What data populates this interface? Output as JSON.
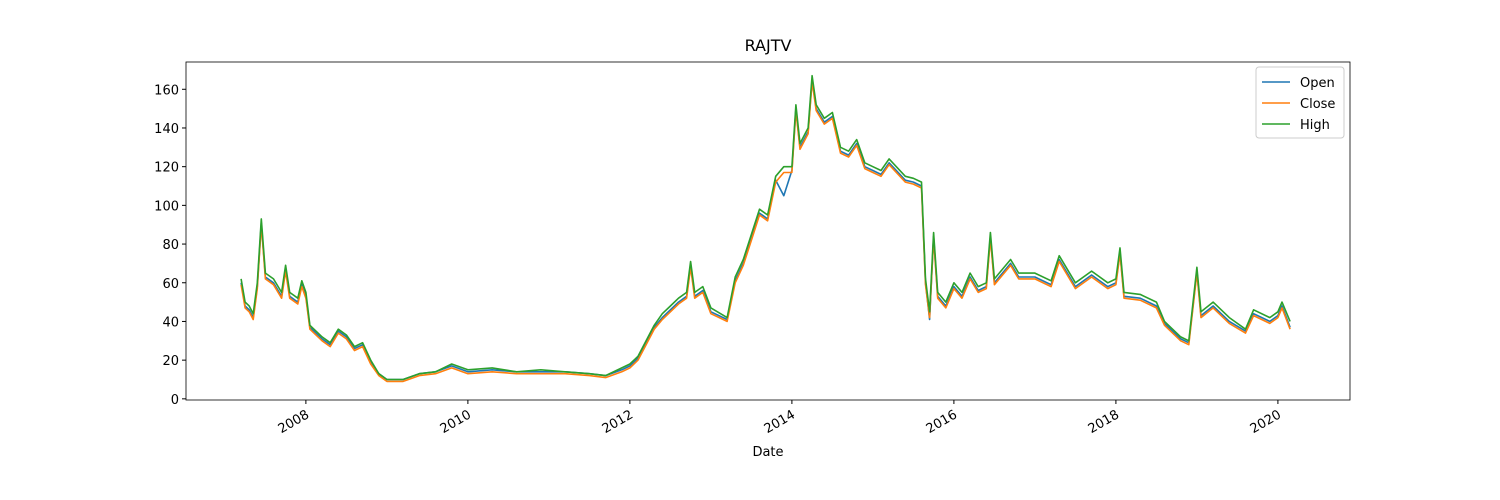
{
  "chart_data": {
    "type": "line",
    "title": "RAJTV",
    "xlabel": "Date",
    "x": [
      2007.2,
      2007.25,
      2007.3,
      2007.35,
      2007.4,
      2007.45,
      2007.5,
      2007.6,
      2007.7,
      2007.75,
      2007.8,
      2007.9,
      2007.95,
      2008.0,
      2008.05,
      2008.2,
      2008.3,
      2008.4,
      2008.5,
      2008.6,
      2008.7,
      2008.8,
      2008.9,
      2009.0,
      2009.2,
      2009.4,
      2009.6,
      2009.8,
      2010.0,
      2010.3,
      2010.6,
      2010.9,
      2011.2,
      2011.5,
      2011.7,
      2011.9,
      2012.0,
      2012.1,
      2012.2,
      2012.3,
      2012.4,
      2012.5,
      2012.6,
      2012.7,
      2012.75,
      2012.8,
      2012.9,
      2013.0,
      2013.2,
      2013.3,
      2013.4,
      2013.5,
      2013.6,
      2013.7,
      2013.8,
      2013.9,
      2014.0,
      2014.05,
      2014.1,
      2014.2,
      2014.25,
      2014.3,
      2014.4,
      2014.5,
      2014.6,
      2014.7,
      2014.8,
      2014.9,
      2015.0,
      2015.1,
      2015.2,
      2015.4,
      2015.5,
      2015.6,
      2015.65,
      2015.7,
      2015.75,
      2015.8,
      2015.9,
      2016.0,
      2016.1,
      2016.2,
      2016.3,
      2016.4,
      2016.45,
      2016.5,
      2016.7,
      2016.8,
      2017.0,
      2017.2,
      2017.3,
      2017.5,
      2017.7,
      2017.9,
      2018.0,
      2018.05,
      2018.1,
      2018.3,
      2018.5,
      2018.6,
      2018.8,
      2018.9,
      2019.0,
      2019.05,
      2019.2,
      2019.4,
      2019.6,
      2019.7,
      2019.9,
      2020.0,
      2020.05,
      2020.15
    ],
    "series": [
      {
        "name": "Open",
        "color": "#1f77b4",
        "values": [
          60,
          48,
          46,
          42,
          58,
          91,
          63,
          60,
          53,
          67,
          53,
          50,
          59,
          53,
          37,
          31,
          28,
          35,
          32,
          26,
          28,
          19,
          13,
          10,
          10,
          13,
          14,
          17,
          14,
          15,
          14,
          14,
          14,
          13,
          12,
          15,
          17,
          21,
          29,
          37,
          42,
          46,
          50,
          53,
          69,
          53,
          56,
          45,
          41,
          61,
          70,
          83,
          96,
          93,
          113,
          105,
          118,
          150,
          130,
          138,
          165,
          150,
          143,
          146,
          128,
          126,
          132,
          120,
          118,
          116,
          122,
          113,
          112,
          110,
          60,
          41,
          84,
          53,
          48,
          58,
          53,
          63,
          56,
          58,
          84,
          60,
          70,
          63,
          63,
          59,
          72,
          58,
          64,
          58,
          60,
          76,
          53,
          52,
          48,
          39,
          31,
          29,
          66,
          43,
          48,
          40,
          35,
          44,
          40,
          43,
          48,
          37
        ]
      },
      {
        "name": "Close",
        "color": "#ff7f0e",
        "values": [
          59,
          47,
          45,
          41,
          57,
          90,
          62,
          59,
          52,
          66,
          52,
          49,
          58,
          52,
          36,
          30,
          27,
          34,
          31,
          25,
          27,
          18,
          12,
          9,
          9,
          12,
          13,
          16,
          13,
          14,
          13,
          13,
          13,
          12,
          11,
          14,
          16,
          20,
          28,
          36,
          41,
          45,
          49,
          52,
          68,
          52,
          55,
          44,
          40,
          60,
          69,
          82,
          95,
          92,
          112,
          117,
          117,
          149,
          129,
          137,
          164,
          149,
          142,
          145,
          127,
          125,
          131,
          119,
          117,
          115,
          121,
          112,
          111,
          109,
          59,
          42,
          83,
          52,
          47,
          57,
          52,
          62,
          55,
          57,
          83,
          59,
          69,
          62,
          62,
          58,
          71,
          57,
          63,
          57,
          59,
          75,
          52,
          51,
          47,
          38,
          30,
          28,
          65,
          42,
          47,
          39,
          34,
          43,
          39,
          42,
          47,
          36
        ]
      },
      {
        "name": "High",
        "color": "#2ca02c",
        "values": [
          62,
          50,
          48,
          44,
          60,
          93,
          65,
          62,
          55,
          69,
          55,
          52,
          61,
          55,
          38,
          32,
          29,
          36,
          33,
          27,
          29,
          20,
          13,
          10,
          10,
          13,
          14,
          18,
          15,
          16,
          14,
          15,
          14,
          13,
          12,
          16,
          18,
          22,
          30,
          38,
          44,
          48,
          52,
          55,
          71,
          55,
          58,
          47,
          42,
          63,
          72,
          85,
          98,
          95,
          115,
          120,
          120,
          152,
          132,
          140,
          167,
          152,
          145,
          148,
          130,
          128,
          134,
          122,
          120,
          118,
          124,
          115,
          114,
          112,
          62,
          45,
          86,
          55,
          50,
          60,
          55,
          65,
          58,
          60,
          86,
          62,
          72,
          65,
          65,
          61,
          74,
          60,
          66,
          60,
          62,
          78,
          55,
          54,
          50,
          40,
          32,
          30,
          68,
          45,
          50,
          42,
          36,
          46,
          42,
          45,
          50,
          40
        ]
      }
    ],
    "xlim": [
      2006.52,
      2020.89
    ],
    "xticks": [
      2008,
      2010,
      2012,
      2014,
      2016,
      2018,
      2020
    ],
    "ylim": [
      -0.6,
      174.1
    ],
    "yticks": [
      0,
      20,
      40,
      60,
      80,
      100,
      120,
      140,
      160
    ],
    "legend": "upper right"
  }
}
